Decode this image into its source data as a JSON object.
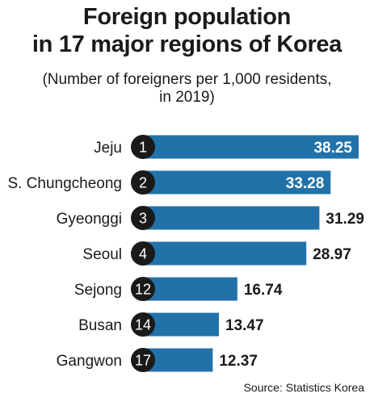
{
  "chart_data": {
    "type": "bar",
    "orientation": "horizontal",
    "title_lines": [
      "Foreign population",
      "in 17 major regions of Korea"
    ],
    "subtitle_lines": [
      "(Number of foreigners per 1,000 residents,",
      "in 2019)"
    ],
    "categories": [
      "Jeju",
      "S. Chungcheong",
      "Gyeonggi",
      "Seoul",
      "Sejong",
      "Busan",
      "Gangwon"
    ],
    "ranks": [
      "1",
      "2",
      "3",
      "4",
      "12",
      "14",
      "17"
    ],
    "values": [
      38.25,
      33.28,
      31.29,
      28.97,
      16.74,
      13.47,
      12.37
    ],
    "value_labels": [
      "38.25",
      "33.28",
      "31.29",
      "28.97",
      "16.74",
      "13.47",
      "12.37"
    ],
    "label_inside": [
      true,
      true,
      false,
      false,
      false,
      false,
      false
    ],
    "xlim": [
      0,
      38.25
    ],
    "grid": false,
    "legend": "none",
    "source": "Source: Statistics Korea"
  },
  "colors": {
    "bar": "#2272a9",
    "rank_badge": "#1a1a1a",
    "rank_text": "#ffffff",
    "text": "#1a1a1a",
    "inside_label": "#ffffff"
  }
}
